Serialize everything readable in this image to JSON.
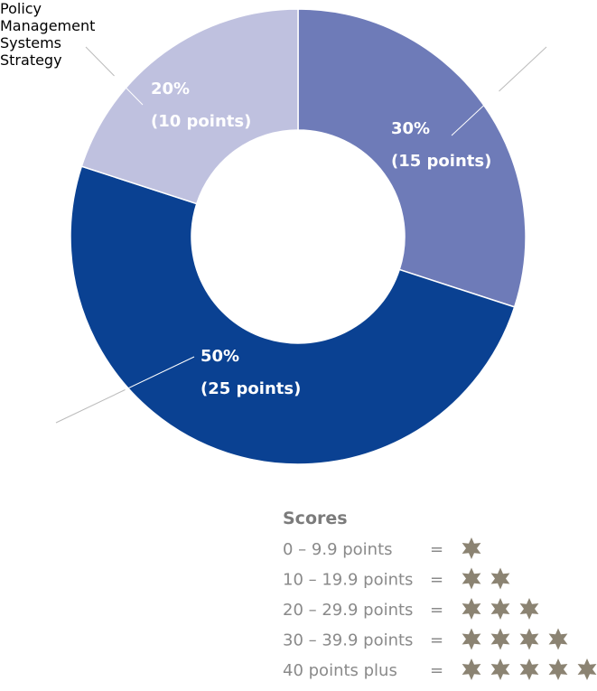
{
  "chart_data": {
    "type": "donut",
    "categories": [
      "Policy",
      "Management Systems",
      "Strategy"
    ],
    "values": [
      30,
      50,
      20
    ],
    "value_labels": [
      "30%",
      "50%",
      "20%"
    ],
    "points": [
      15,
      25,
      10
    ],
    "points_labels": [
      "(15 points)",
      "(25 points)",
      "(10 points)"
    ],
    "colors": [
      "#6e7bb8",
      "#0a4192",
      "#bfc1df"
    ]
  },
  "scores": {
    "title": "Scores",
    "sign": "=",
    "rows": [
      {
        "range": "0  – 9.9 points",
        "stars": 1
      },
      {
        "range": "10 – 19.9 points",
        "stars": 2
      },
      {
        "range": "20 – 29.9 points",
        "stars": 3
      },
      {
        "range": "30 – 39.9 points",
        "stars": 4
      },
      {
        "range": "40 points plus",
        "stars": 5
      }
    ]
  }
}
